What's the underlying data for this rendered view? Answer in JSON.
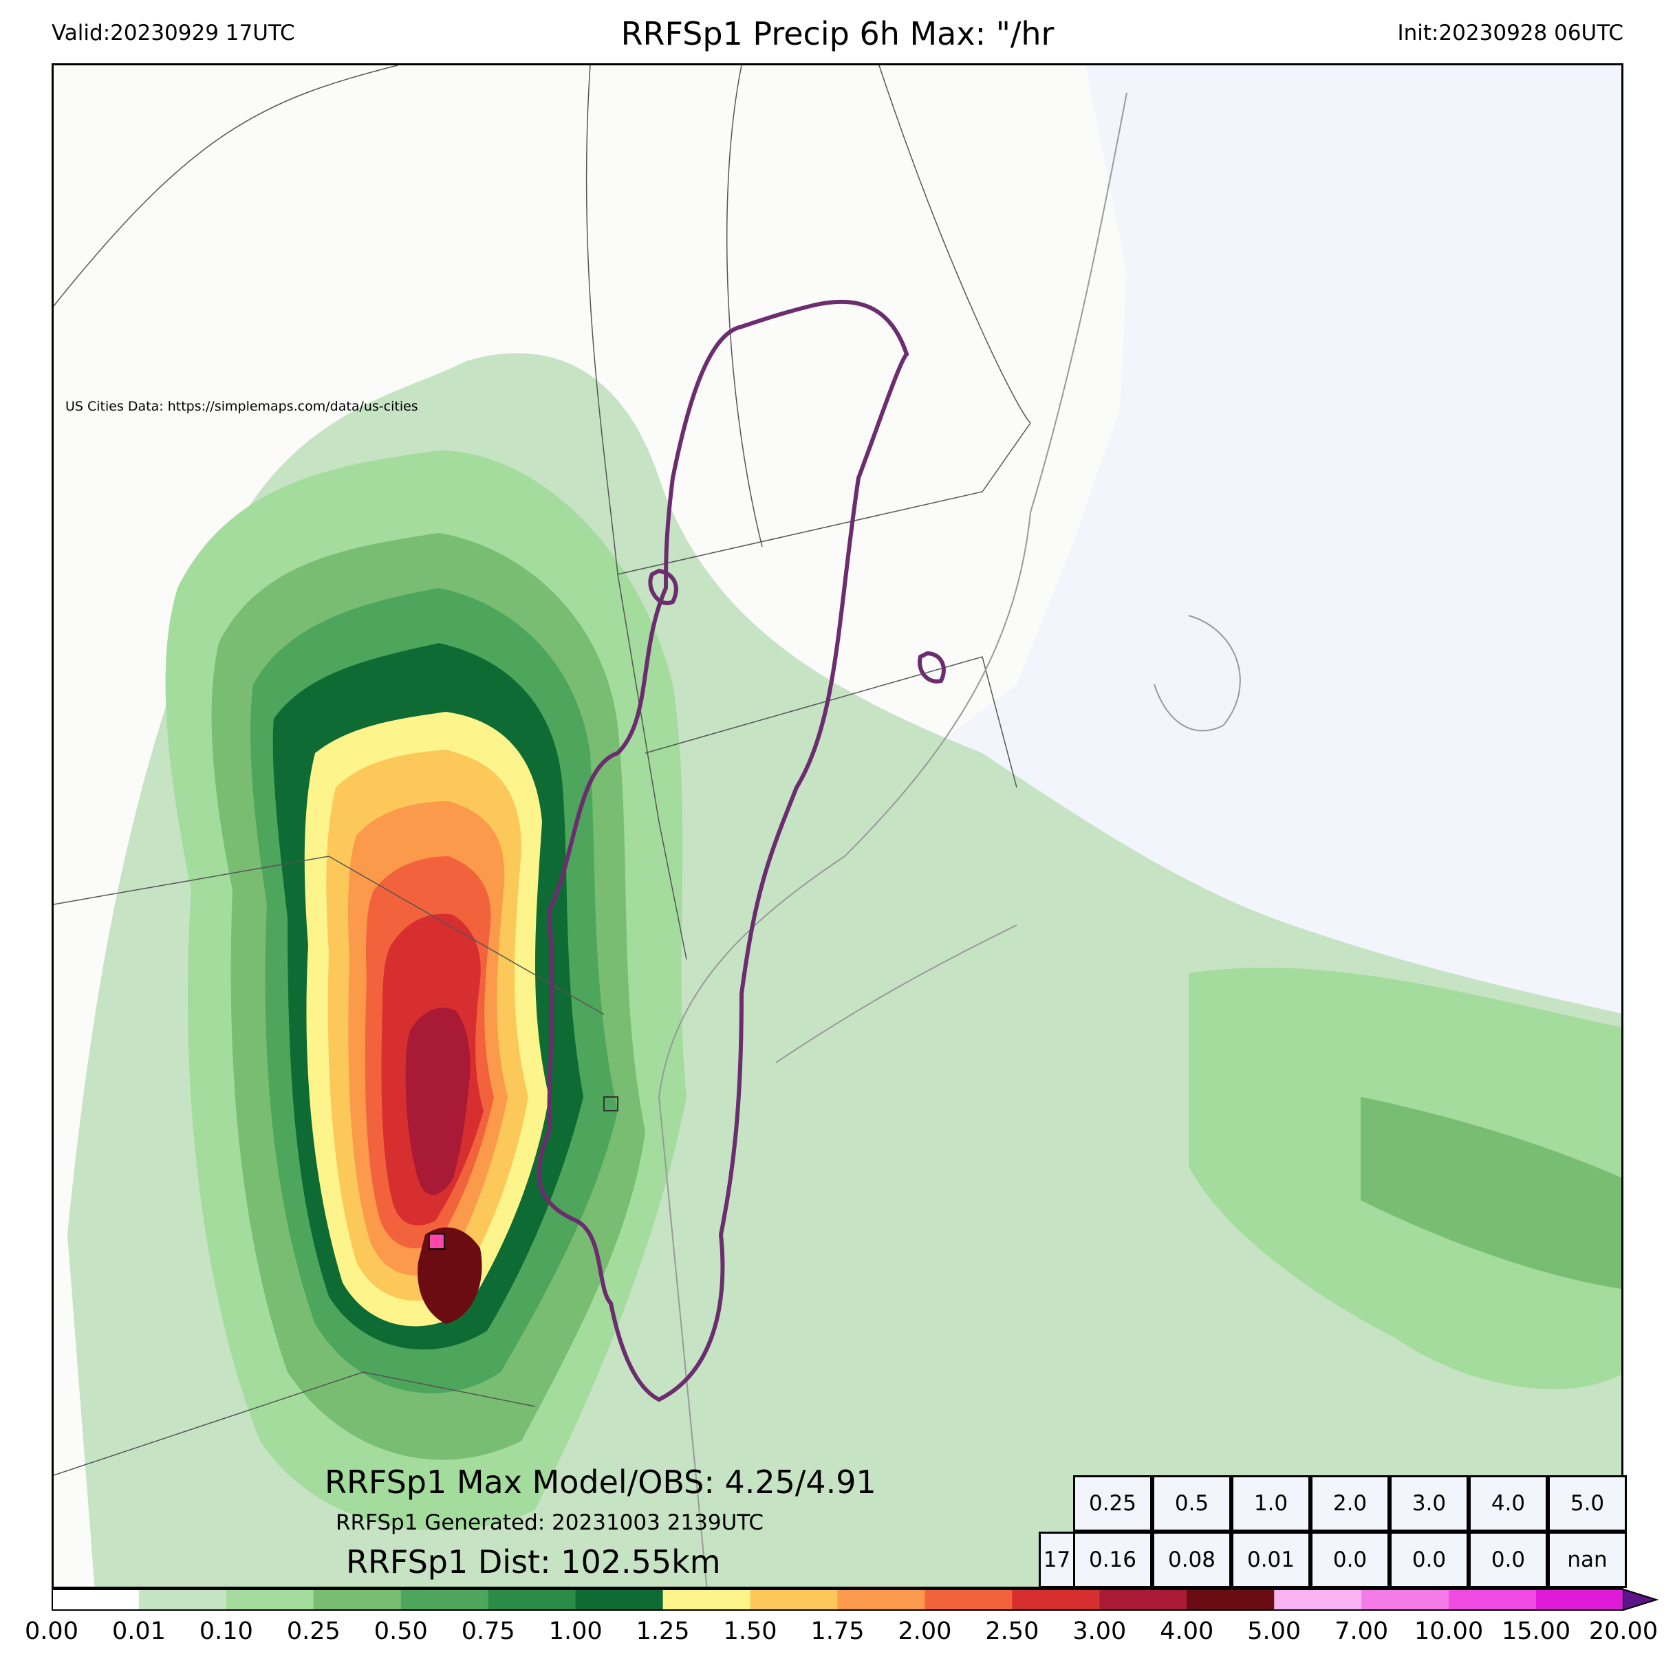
{
  "header": {
    "valid": "Valid:20230929 17UTC",
    "title": "RRFSp1 Precip 6h Max: \"/hr",
    "init": "Init:20230928 06UTC"
  },
  "attribution": "US Cities Data: https://simplemaps.com/data/us-cities",
  "stats": {
    "max_line": "RRFSp1 Max Model/OBS: 4.25/4.91",
    "generated_line": "RRFSp1 Generated: 20231003 2139UTC",
    "dist_line": "RRFSp1 Dist: 102.55km"
  },
  "score_table": {
    "thresholds": [
      "0.25",
      "0.5",
      "1.0",
      "2.0",
      "3.0",
      "4.0",
      "5.0"
    ],
    "row_label": "17",
    "scores": [
      "0.16",
      "0.08",
      "0.01",
      "0.0",
      "0.0",
      "0.0",
      "nan"
    ]
  },
  "colorbar": {
    "ticks": [
      "0.00",
      "0.01",
      "0.10",
      "0.25",
      "0.50",
      "0.75",
      "1.00",
      "1.25",
      "1.50",
      "1.75",
      "2.00",
      "2.50",
      "3.00",
      "4.00",
      "5.00",
      "7.00",
      "10.00",
      "15.00",
      "20.00"
    ],
    "colors": [
      "#ffffff",
      "#c6e3c4",
      "#a3dc9c",
      "#78bd72",
      "#4ea55c",
      "#2a8c47",
      "#0e6b33",
      "#fdf58c",
      "#fdc85a",
      "#fb9a4a",
      "#f2623c",
      "#d72f2f",
      "#a81a36",
      "#6b0b12",
      "#f9b2f2",
      "#f47ae8",
      "#ef4be2",
      "#df1ad9",
      "#9b12d0"
    ],
    "extend_color": "#5b1589"
  },
  "map": {
    "ocean_color": "#f2f5fb",
    "land_color": "#fbfbf9",
    "outline_color": "#6b2d6e"
  }
}
